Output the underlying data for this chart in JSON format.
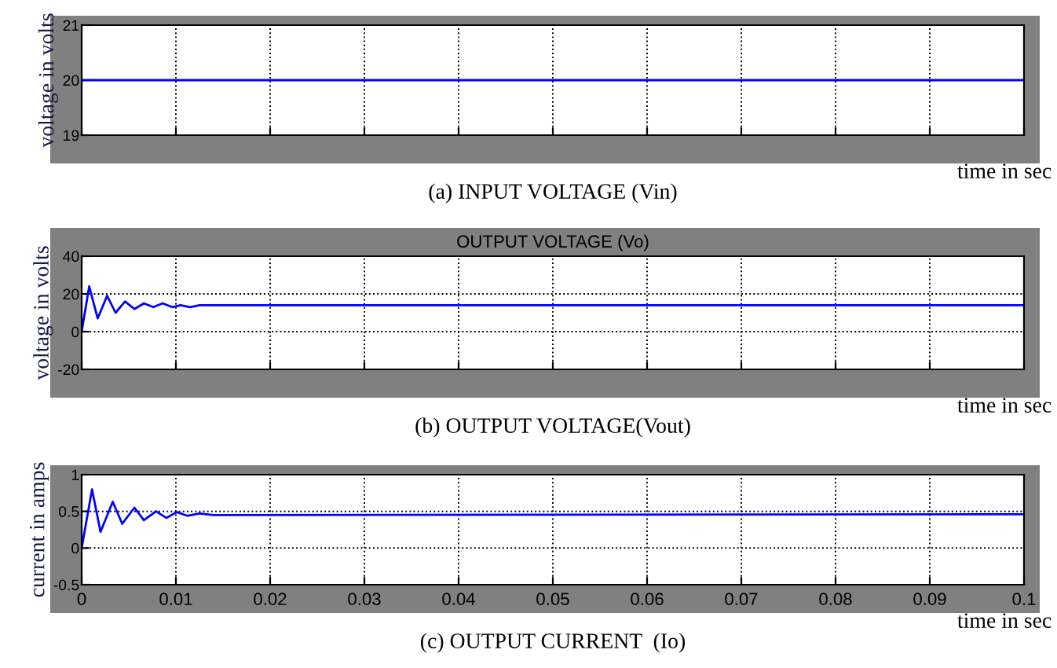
{
  "chart_data": [
    {
      "type": "line",
      "ylabel": "voltage in volts",
      "xlabel": "time in sec",
      "annotations": [
        "(a) INPUT VOLTAGE (Vin)"
      ],
      "x": [
        0,
        0.1
      ],
      "series": [
        {
          "color": "#0000ff",
          "values": [
            20,
            20
          ]
        }
      ],
      "xlim": [
        0,
        0.1
      ],
      "xticks": [
        0,
        0.01,
        0.02,
        0.03,
        0.04,
        0.05,
        0.06,
        0.07,
        0.08,
        0.09,
        0.1
      ],
      "ylim": [
        19,
        21
      ],
      "yticks": [
        19,
        20,
        21
      ],
      "grid": true,
      "tick_labels": "y",
      "line_style": "solid"
    },
    {
      "type": "line",
      "title": "OUTPUT VOLTAGE (Vo)",
      "ylabel": "voltage in volts",
      "xlabel": "time in sec",
      "annotations": [
        "(b) OUTPUT VOLTAGE(Vout)"
      ],
      "x": [
        0,
        0.0008,
        0.0017,
        0.0027,
        0.0036,
        0.0046,
        0.0056,
        0.0066,
        0.0076,
        0.0086,
        0.0096,
        0.0105,
        0.0115,
        0.0125,
        0.1
      ],
      "series": [
        {
          "color": "#0000ff",
          "values": [
            0,
            24,
            7,
            19,
            10,
            16,
            12,
            15,
            13,
            15,
            13,
            14,
            13,
            14,
            14
          ]
        }
      ],
      "xlim": [
        0,
        0.1
      ],
      "xticks": [
        0,
        0.01,
        0.02,
        0.03,
        0.04,
        0.05,
        0.06,
        0.07,
        0.08,
        0.09,
        0.1
      ],
      "ylim": [
        -20,
        40
      ],
      "yticks": [
        -20,
        0,
        20,
        40
      ],
      "grid": true,
      "tick_labels": "y",
      "line_style": "solid"
    },
    {
      "type": "line",
      "ylabel": "current in amps",
      "xlabel": "time in sec",
      "annotations": [
        "(c) OUTPUT CURRENT  (Io)"
      ],
      "x": [
        0,
        0.0011,
        0.002,
        0.0033,
        0.0043,
        0.0056,
        0.0066,
        0.0079,
        0.009,
        0.0101,
        0.0112,
        0.0125,
        0.014,
        0.1
      ],
      "series": [
        {
          "color": "#0000ff",
          "values": [
            0,
            0.8,
            0.22,
            0.63,
            0.33,
            0.55,
            0.38,
            0.5,
            0.41,
            0.49,
            0.44,
            0.47,
            0.45,
            0.46
          ]
        }
      ],
      "xlim": [
        0,
        0.1
      ],
      "xticks": [
        0,
        0.01,
        0.02,
        0.03,
        0.04,
        0.05,
        0.06,
        0.07,
        0.08,
        0.09,
        0.1
      ],
      "ylim": [
        -0.5,
        1
      ],
      "yticks": [
        -0.5,
        0,
        0.5,
        1
      ],
      "grid": true,
      "line_style": "solid"
    }
  ]
}
